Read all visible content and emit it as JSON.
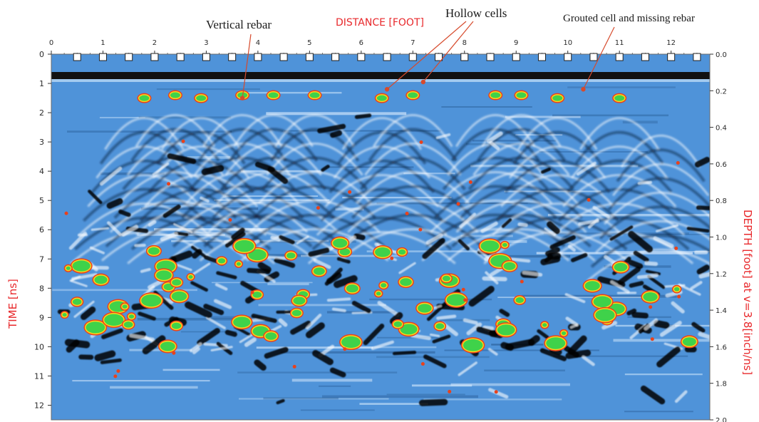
{
  "chart_data": {
    "type": "heatmap",
    "title": "DISTANCE [FOOT]",
    "xlabel": "DISTANCE [FOOT]",
    "ylabel": "TIME [ns]",
    "y2label": "DEPTH [foot] at v=3.8[inch/ns]",
    "xlim": [
      0,
      12.75
    ],
    "ylim": [
      0,
      12.5
    ],
    "y2lim": [
      0,
      2.0
    ],
    "x_ticks": [
      "0",
      "1",
      "2",
      "3",
      "4",
      "5",
      "6",
      "7",
      "8",
      "9",
      "10",
      "11",
      "12"
    ],
    "y_ticks": [
      "0",
      "1",
      "2",
      "3",
      "4",
      "5",
      "6",
      "7",
      "8",
      "9",
      "10",
      "11",
      "12"
    ],
    "y2_ticks": [
      "0.0",
      "0.2",
      "0.4",
      "0.6",
      "0.8",
      "1.0",
      "1.2",
      "1.4",
      "1.6",
      "1.8",
      "2.0"
    ],
    "annotations": [
      {
        "text": "Vertical rebar",
        "target_x": 3.7,
        "target_y": 1.5
      },
      {
        "text": "Hollow cells",
        "target_x": 6.5,
        "target_y": 1.2
      },
      {
        "text": "Hollow cells",
        "target_x": 7.2,
        "target_y": 0.95
      },
      {
        "text": "Grouted cell and missing rebar",
        "target_x": 10.3,
        "target_y": 1.2
      }
    ],
    "rebar_hyperbola_apexes": [
      {
        "x": 1.8,
        "t": 1.6
      },
      {
        "x": 2.4,
        "t": 1.5
      },
      {
        "x": 2.9,
        "t": 1.6
      },
      {
        "x": 3.7,
        "t": 1.5
      },
      {
        "x": 4.3,
        "t": 1.5
      },
      {
        "x": 5.1,
        "t": 1.5
      },
      {
        "x": 6.4,
        "t": 1.6
      },
      {
        "x": 7.0,
        "t": 1.5
      },
      {
        "x": 8.6,
        "t": 1.5
      },
      {
        "x": 9.1,
        "t": 1.5
      },
      {
        "x": 9.8,
        "t": 1.6
      },
      {
        "x": 11.0,
        "t": 1.6
      },
      {
        "x": 11.8,
        "t": 2.2
      }
    ],
    "colors": {
      "background": "#4f93d9",
      "strong_reflection": "#000000",
      "amplitude_high": "#3fd24a",
      "amplitude_mid": "#ffd21a",
      "amplitude_peak": "#e8421c",
      "axis_label": "#e8282b"
    }
  }
}
